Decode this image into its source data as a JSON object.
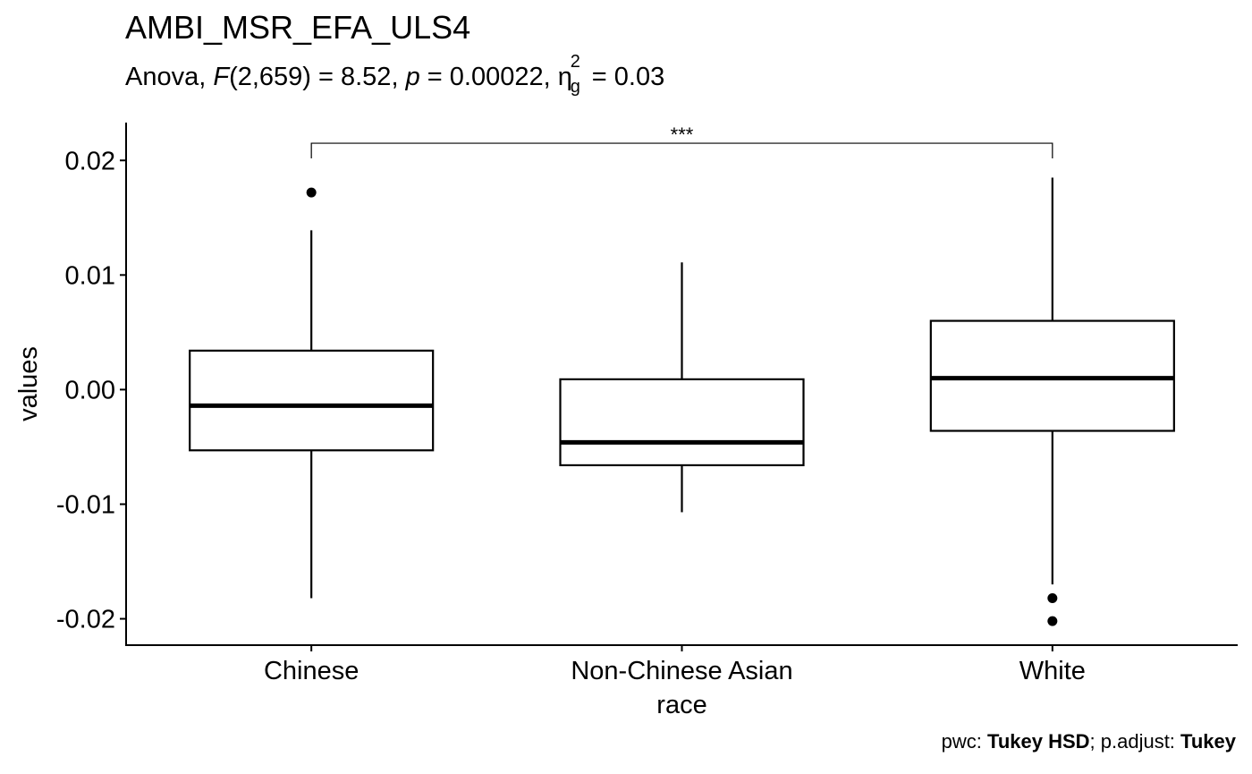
{
  "chart_data": {
    "type": "box",
    "title": "AMBI_MSR_EFA_ULS4",
    "subtitle": {
      "prefix": "Anova, ",
      "F_symbol": "F",
      "F_args": "(2,659) = 8.52, ",
      "p_symbol": "p",
      "p_text": " = 0.00022, ",
      "eta_symbol": "η",
      "eta_sup": "2",
      "eta_sub": "g",
      "eta_text": " = 0.03"
    },
    "xlabel": "race",
    "ylabel": "values",
    "ylim": [
      -0.0223,
      0.0233
    ],
    "y_ticks": [
      {
        "value": 0.02,
        "label": "0.02"
      },
      {
        "value": 0.01,
        "label": "0.01"
      },
      {
        "value": 0.0,
        "label": "0.00"
      },
      {
        "value": -0.01,
        "label": "-0.01"
      },
      {
        "value": -0.02,
        "label": "-0.02"
      }
    ],
    "categories": [
      "Chinese",
      "Non-Chinese Asian",
      "White"
    ],
    "boxes": [
      {
        "category": "Chinese",
        "whisker_low": -0.0182,
        "q1": -0.0053,
        "median": -0.0014,
        "q3": 0.0034,
        "whisker_high": 0.0139,
        "outliers": [
          0.0172
        ]
      },
      {
        "category": "Non-Chinese Asian",
        "whisker_low": -0.0107,
        "q1": -0.0066,
        "median": -0.0046,
        "q3": 0.0009,
        "whisker_high": 0.0111,
        "outliers": []
      },
      {
        "category": "White",
        "whisker_low": -0.017,
        "q1": -0.0036,
        "median": 0.001,
        "q3": 0.006,
        "whisker_high": 0.0185,
        "outliers": [
          -0.0182,
          -0.0202
        ]
      }
    ],
    "significance": [
      {
        "from": "Chinese",
        "to": "White",
        "label": "***",
        "y": 0.0215
      }
    ],
    "grid": false,
    "legend": "none"
  },
  "caption": {
    "pwc_label": "pwc: ",
    "pwc_value": "Tukey HSD",
    "sep": "; p.adjust: ",
    "adjust_value": "Tukey"
  }
}
